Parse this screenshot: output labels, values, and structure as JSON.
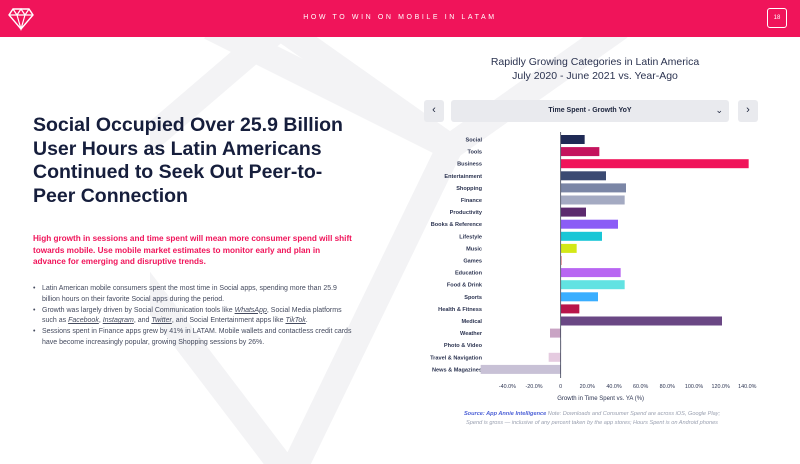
{
  "header": {
    "title": "HOW TO WIN ON MOBILE IN LATAM",
    "page_number": "18",
    "brand_color": "#f0145a"
  },
  "left": {
    "headline": "Social Occupied Over 25.9 Billion User Hours as Latin Americans Continued to Seek Out Peer-to-Peer Connection",
    "intro": "High growth in sessions and time spent will mean more consumer spend will shift towards mobile. Use mobile market estimates to monitor early and plan in advance for emerging and disruptive trends.",
    "bullet1": "Latin American mobile consumers spent the most time in Social apps, spending more than 25.9 billion hours on their favorite Social apps during the period.",
    "bullet2_a": "Growth was largely driven by Social Communication tools like ",
    "bullet2_l1": "WhatsApp",
    "bullet2_b": ", Social Media platforms such as ",
    "bullet2_l2": "Facebook",
    "bullet2_c": ", ",
    "bullet2_l3": "Instagram",
    "bullet2_d": ", and ",
    "bullet2_l4": "Twitter",
    "bullet2_e": ", and Social Entertainment apps like ",
    "bullet2_l5": "TikTok",
    "bullet2_f": ".",
    "bullet3": "Sessions spent in Finance apps grew by 41% in LATAM. Mobile wallets and contactless credit cards have become increasingly popular, growing Shopping sessions by 26%."
  },
  "chart_header": {
    "title_line1": "Rapidly Growing Categories in Latin America",
    "title_line2": "July 2020 - June 2021 vs. Year-Ago",
    "prev_icon": "‹",
    "next_icon": "›",
    "dropdown_label": "Time Spent - Growth YoY",
    "dropdown_caret": "⌄"
  },
  "chart_data": {
    "type": "bar",
    "orientation": "horizontal",
    "xlabel": "Growth in Time Spent vs. YA (%)",
    "xlim": [
      -50,
      145
    ],
    "xticks": [
      -40,
      -20,
      0,
      20,
      40,
      60,
      80,
      100,
      120,
      140
    ],
    "xtick_labels": [
      "-40.0%",
      "-20.0%",
      "0",
      "20.0%",
      "40.0%",
      "60.0%",
      "80.0%",
      "100.0%",
      "120.0%",
      "140.0%"
    ],
    "categories": [
      "Social",
      "Tools",
      "Business",
      "Entertainment",
      "Shopping",
      "Finance",
      "Productivity",
      "Books & Reference",
      "Lifestyle",
      "Music",
      "Games",
      "Education",
      "Food & Drink",
      "Sports",
      "Health & Fitness",
      "Medical",
      "Weather",
      "Photo & Video",
      "Travel & Navigation",
      "News & Magazines"
    ],
    "values": [
      18,
      29,
      141,
      34,
      49,
      48,
      19,
      43,
      31,
      12,
      1,
      45,
      48,
      28,
      14,
      121,
      -8,
      0,
      -9,
      -60
    ],
    "colors": [
      "#1f2a55",
      "#c4145e",
      "#f0145a",
      "#3b4a72",
      "#7b86a6",
      "#a4aac2",
      "#5c2a6e",
      "#8b5cf6",
      "#19c6d6",
      "#d3e817",
      "#f4a9a9",
      "#b866f2",
      "#62e2e2",
      "#3aaeff",
      "#b8144a",
      "#6a4784",
      "#c9a4c4",
      "#e8d8e4",
      "#e5cbe0",
      "#c8c1d6"
    ]
  },
  "source": {
    "label": "Source: App Annie Intelligence",
    "text": " Note: Downloads and Consumer Spend are across iOS, Google Play; Spend is gross — inclusive of any percent taken by the app stores; Hours Spent is on Android phones"
  }
}
